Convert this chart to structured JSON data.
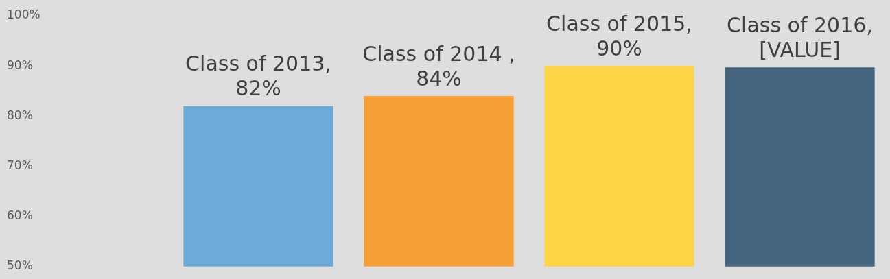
{
  "chart_data": {
    "type": "bar",
    "categories": [
      null,
      null,
      null,
      null
    ],
    "values": [
      82,
      84,
      90,
      89.7
    ],
    "colors": [
      "#6eaad8",
      "#f5a034",
      "#fdd445",
      "#46657e"
    ],
    "value_labels": [
      "Class of 2013,\n82%",
      "Class of 2014 ,\n84%",
      "Class of 2015,\n90%",
      "Class of 2016,\n[VALUE]"
    ],
    "ylim": [
      50,
      100
    ],
    "yticks": [
      {
        "value": 50,
        "label": "50%"
      },
      {
        "value": 60,
        "label": "60%"
      },
      {
        "value": 70,
        "label": "70%"
      },
      {
        "value": 80,
        "label": "80%"
      },
      {
        "value": 90,
        "label": "90%"
      },
      {
        "value": 100,
        "label": "100%"
      }
    ],
    "grid": false,
    "legend": false
  }
}
